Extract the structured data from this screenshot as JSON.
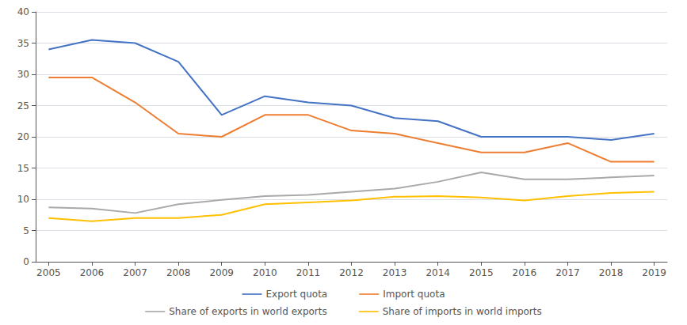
{
  "chart_data": {
    "type": "line",
    "x": [
      2005,
      2006,
      2007,
      2008,
      2009,
      2010,
      2011,
      2012,
      2013,
      2014,
      2015,
      2016,
      2017,
      2018,
      2019
    ],
    "series": [
      {
        "name": "Export quota",
        "color": "#4472C4",
        "values": [
          34.0,
          35.5,
          35.0,
          32.0,
          23.5,
          26.5,
          25.5,
          25.0,
          23.0,
          22.5,
          20.0,
          20.0,
          20.0,
          19.5,
          20.5
        ]
      },
      {
        "name": "Import quota",
        "color": "#ED7D31",
        "values": [
          29.5,
          29.5,
          25.5,
          20.5,
          20.0,
          23.5,
          23.5,
          21.0,
          20.5,
          19.0,
          17.5,
          17.5,
          19.0,
          16.0,
          16.0
        ]
      },
      {
        "name": "Share of exports in world exports",
        "color": "#A9A9A9",
        "values": [
          8.7,
          8.5,
          7.8,
          9.2,
          9.9,
          10.5,
          10.7,
          11.2,
          11.7,
          12.8,
          14.3,
          13.2,
          13.2,
          13.5,
          13.8
        ]
      },
      {
        "name": "Share of imports in world imports",
        "color": "#FFC000",
        "values": [
          7.0,
          6.5,
          7.0,
          7.0,
          7.5,
          9.2,
          9.5,
          9.8,
          10.4,
          10.5,
          10.3,
          9.8,
          10.5,
          11.0,
          11.2
        ]
      }
    ],
    "xlim": [
      2004.7,
      2019.3
    ],
    "xticks": [
      2005,
      2006,
      2007,
      2008,
      2009,
      2010,
      2011,
      2012,
      2013,
      2014,
      2015,
      2016,
      2017,
      2018,
      2019
    ],
    "ylim": [
      0,
      40
    ],
    "yticks": [
      0,
      5,
      10,
      15,
      20,
      25,
      30,
      35,
      40
    ],
    "grid": true,
    "legend": "bottom"
  }
}
